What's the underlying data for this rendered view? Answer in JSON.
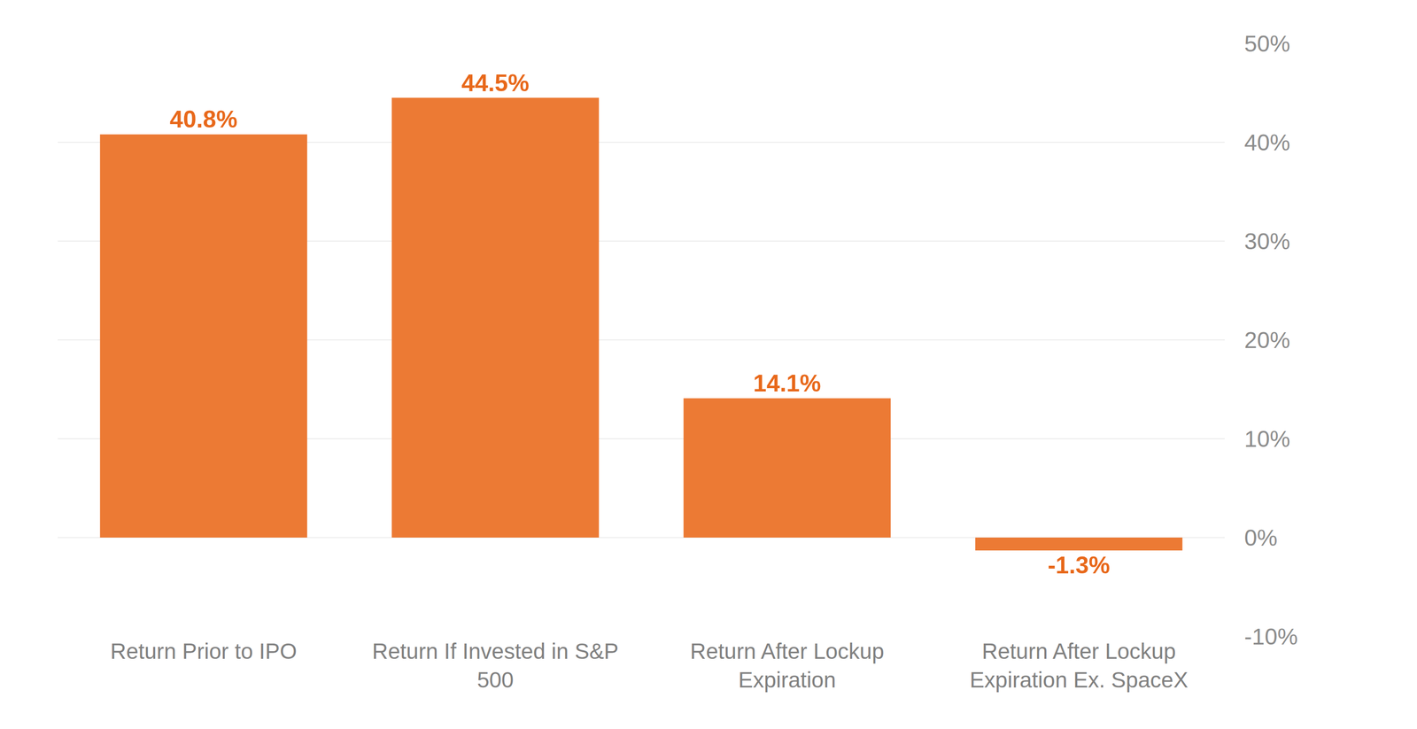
{
  "chart_data": {
    "type": "bar",
    "categories": [
      "Return Prior to IPO",
      "Return If Invested in S&P 500",
      "Return After Lockup Expiration",
      "Return After Lockup Expiration Ex. SpaceX"
    ],
    "values": [
      40.8,
      44.5,
      14.1,
      -1.3
    ],
    "value_labels": [
      "40.8%",
      "44.5%",
      "14.1%",
      "-1.3%"
    ],
    "color": "#ec7a34",
    "ylim": [
      -10,
      50
    ],
    "yticks": [
      {
        "value": -10,
        "label": "-10%"
      },
      {
        "value": 0,
        "label": "0%"
      },
      {
        "value": 10,
        "label": "10%"
      },
      {
        "value": 20,
        "label": "20%"
      },
      {
        "value": 30,
        "label": "30%"
      },
      {
        "value": 40,
        "label": "40%"
      },
      {
        "value": 50,
        "label": "50%"
      }
    ],
    "grid": true,
    "data_labels": true
  }
}
